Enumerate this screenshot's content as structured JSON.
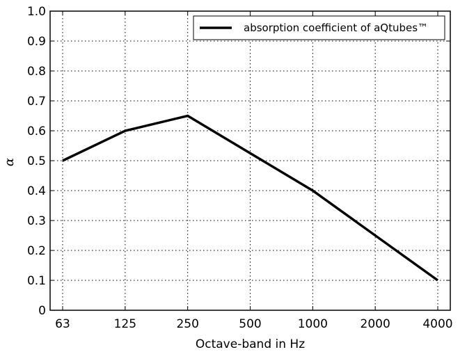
{
  "chart_data": {
    "type": "line",
    "categories": [
      "63",
      "125",
      "250",
      "500",
      "1000",
      "2000",
      "4000"
    ],
    "series": [
      {
        "name": "absorption coefficient of aQtubes™",
        "values": [
          0.5,
          0.6,
          0.65,
          0.525,
          0.4,
          0.25,
          0.1
        ],
        "color": "#000000"
      }
    ],
    "xlabel": "Octave-band in Hz",
    "ylabel": "α",
    "ylim": [
      0,
      1.0
    ],
    "yticks": [
      "0",
      "0.1",
      "0.2",
      "0.3",
      "0.4",
      "0.5",
      "0.6",
      "0.7",
      "0.8",
      "0.9",
      "1.0"
    ],
    "grid": true,
    "legend_position": "top-right"
  }
}
